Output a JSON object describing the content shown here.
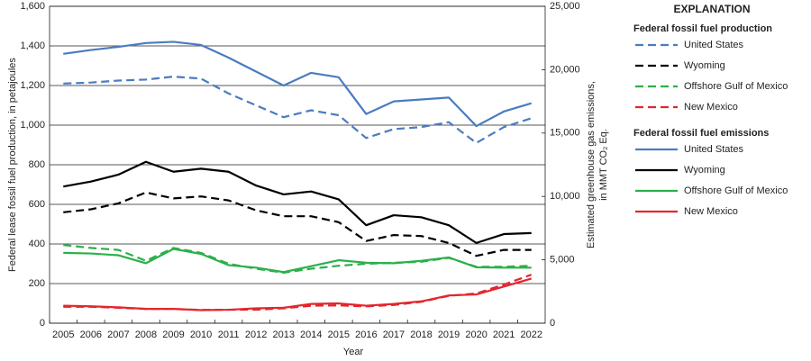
{
  "chart_data": {
    "type": "line",
    "xlabel": "Year",
    "ylabel": "Federal lease fossil fuel production, in petajoules",
    "y2label": [
      "Estimated greenhouse gas emissions,",
      "in MMT CO₂ Eq."
    ],
    "legend_title": "EXPLANATION",
    "legend_groups": [
      "Federal fossil fuel production",
      "Federal fossil fuel emissions"
    ],
    "grid": true,
    "categories": [
      "2005",
      "2006",
      "2007",
      "2008",
      "2009",
      "2010",
      "2011",
      "2012",
      "2013",
      "2014",
      "2015",
      "2016",
      "2017",
      "2018",
      "2019",
      "2020",
      "2021",
      "2022"
    ],
    "ylim": [
      0,
      1600
    ],
    "yticks": [
      0,
      200,
      400,
      600,
      800,
      {
        "value": 1000,
        "label": "1,000"
      },
      {
        "value": 1200,
        "label": "1,200"
      },
      {
        "value": 1400,
        "label": "1,400"
      },
      {
        "value": 1600,
        "label": "1,600"
      }
    ],
    "y2lim": [
      0,
      25000
    ],
    "y2ticks": [
      0,
      {
        "value": 5000,
        "label": "5,000"
      },
      {
        "value": 10000,
        "label": "10,000"
      },
      {
        "value": 15000,
        "label": "15,000"
      },
      {
        "value": 20000,
        "label": "20,000"
      },
      {
        "value": 25000,
        "label": "25,000"
      }
    ],
    "series": [
      {
        "name": "United States",
        "color": "#4a7cc0",
        "style": "dashed",
        "axis": "y",
        "values": [
          1210,
          1215,
          1225,
          1230,
          1245,
          1235,
          1160,
          1100,
          1040,
          1075,
          1050,
          935,
          980,
          990,
          1015,
          910,
          990,
          1035
        ]
      },
      {
        "name": "Wyoming",
        "color": "#000000",
        "style": "dashed",
        "axis": "y",
        "values": [
          560,
          575,
          605,
          660,
          630,
          640,
          620,
          570,
          540,
          540,
          510,
          415,
          445,
          440,
          405,
          340,
          370,
          370
        ]
      },
      {
        "name": "Offshore Gulf of Mexico",
        "color": "#2bb04a",
        "style": "dashed",
        "axis": "y",
        "values": [
          395,
          380,
          370,
          315,
          380,
          355,
          300,
          275,
          255,
          275,
          290,
          300,
          305,
          310,
          330,
          285,
          285,
          290
        ]
      },
      {
        "name": "New Mexico",
        "color": "#e3262c",
        "style": "dashed",
        "axis": "y",
        "values": [
          83,
          83,
          78,
          72,
          72,
          67,
          68,
          68,
          75,
          88,
          90,
          85,
          92,
          108,
          138,
          150,
          195,
          245
        ]
      },
      {
        "name": "United States",
        "color": "#4a7cc0",
        "style": "solid",
        "axis": "y2",
        "values": [
          21250,
          21550,
          21800,
          22100,
          22200,
          21950,
          20950,
          19850,
          18750,
          19750,
          19400,
          16500,
          17500,
          17650,
          17800,
          15550,
          16700,
          17350
        ]
      },
      {
        "name": "Wyoming",
        "color": "#000000",
        "style": "solid",
        "axis": "y2",
        "values": [
          10780,
          11170,
          11720,
          12730,
          11950,
          12190,
          11950,
          10860,
          10160,
          10390,
          9770,
          7730,
          8520,
          8360,
          7730,
          6330,
          7030,
          7110
        ]
      },
      {
        "name": "Offshore Gulf of Mexico",
        "color": "#2bb04a",
        "style": "solid",
        "axis": "y2",
        "values": [
          5550,
          5500,
          5360,
          4730,
          5860,
          5470,
          4580,
          4380,
          4030,
          4500,
          4970,
          4770,
          4730,
          4920,
          5190,
          4410,
          4380,
          4380
        ]
      },
      {
        "name": "New Mexico",
        "color": "#e3262c",
        "style": "solid",
        "axis": "y2",
        "values": [
          1380,
          1330,
          1250,
          1130,
          1130,
          1030,
          1060,
          1170,
          1220,
          1520,
          1560,
          1380,
          1520,
          1720,
          2190,
          2270,
          2890,
          3520
        ]
      }
    ]
  }
}
